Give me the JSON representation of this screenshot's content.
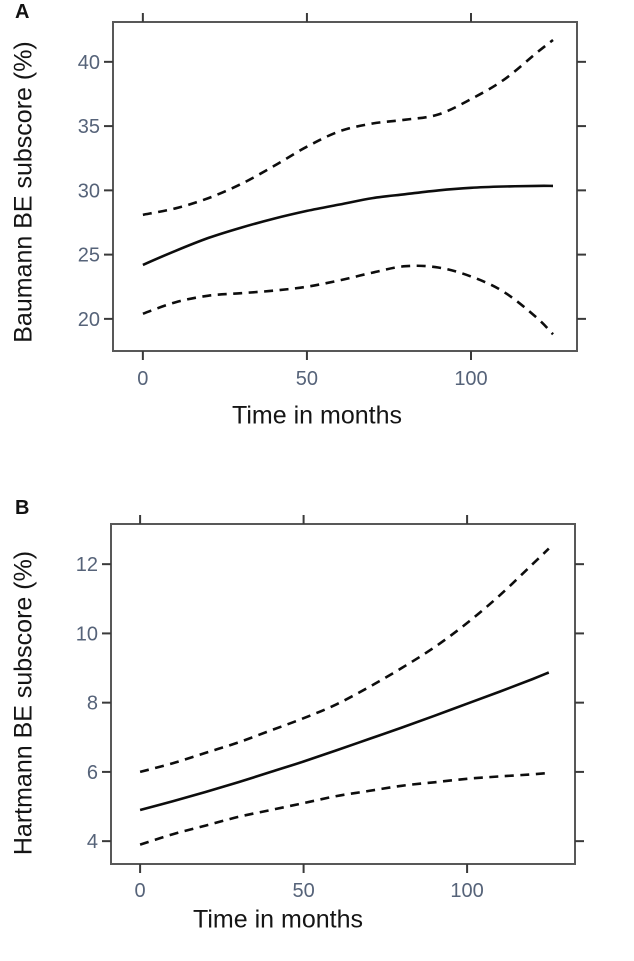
{
  "figure": {
    "background": "#ffffff",
    "box_color": "#585858",
    "tick_color": "#3a3a3a",
    "tick_label_color": "#566379",
    "title_color": "#151515",
    "curve_color": "#0d0d0d"
  },
  "chart_data": [
    {
      "type": "line",
      "panel_label": "A",
      "ylabel": "Baumann BE subscore (%)",
      "xlabel": "Time in months",
      "x_ticks": [
        0,
        50,
        100
      ],
      "y_ticks": [
        20,
        25,
        30,
        35,
        40
      ],
      "xlim": [
        -9.1,
        132.3
      ],
      "ylim": [
        17.5,
        43.1
      ],
      "grid": false,
      "legend": "none",
      "x": [
        0,
        10,
        20,
        30,
        40,
        50,
        60,
        70,
        80,
        90,
        100,
        110,
        120,
        125
      ],
      "series": [
        {
          "name": "mean",
          "style": "solid",
          "values": [
            24.2,
            25.3,
            26.3,
            27.1,
            27.8,
            28.4,
            28.9,
            29.4,
            29.7,
            30.0,
            30.2,
            30.3,
            30.35,
            30.35
          ]
        },
        {
          "name": "upper-ci",
          "style": "dashed",
          "values": [
            28.1,
            28.6,
            29.4,
            30.5,
            31.9,
            33.4,
            34.6,
            35.2,
            35.5,
            35.9,
            37.1,
            38.6,
            40.7,
            41.7
          ]
        },
        {
          "name": "lower-ci",
          "style": "dashed",
          "values": [
            20.4,
            21.3,
            21.8,
            22.0,
            22.2,
            22.5,
            23.0,
            23.6,
            24.1,
            24.0,
            23.3,
            22.1,
            20.1,
            18.8
          ]
        }
      ]
    },
    {
      "type": "line",
      "panel_label": "B",
      "ylabel": "Hartmann BE subscore (%)",
      "xlabel": "Time in months",
      "x_ticks": [
        0,
        50,
        100
      ],
      "y_ticks": [
        4,
        6,
        8,
        10,
        12
      ],
      "xlim": [
        -8.9,
        133.0
      ],
      "ylim": [
        3.34,
        13.16
      ],
      "grid": false,
      "legend": "none",
      "x": [
        0,
        10,
        20,
        30,
        40,
        50,
        60,
        70,
        80,
        90,
        100,
        110,
        120,
        125
      ],
      "series": [
        {
          "name": "mean",
          "style": "solid",
          "values": [
            4.9,
            5.15,
            5.42,
            5.7,
            6.0,
            6.3,
            6.62,
            6.95,
            7.28,
            7.62,
            7.97,
            8.32,
            8.68,
            8.87
          ]
        },
        {
          "name": "upper-ci",
          "style": "dashed",
          "values": [
            6.0,
            6.25,
            6.55,
            6.85,
            7.2,
            7.55,
            7.95,
            8.45,
            9.0,
            9.6,
            10.3,
            11.1,
            12.0,
            12.45
          ]
        },
        {
          "name": "lower-ci",
          "style": "dashed",
          "values": [
            3.9,
            4.2,
            4.45,
            4.7,
            4.9,
            5.1,
            5.3,
            5.45,
            5.6,
            5.7,
            5.8,
            5.87,
            5.93,
            5.97
          ]
        }
      ]
    }
  ]
}
